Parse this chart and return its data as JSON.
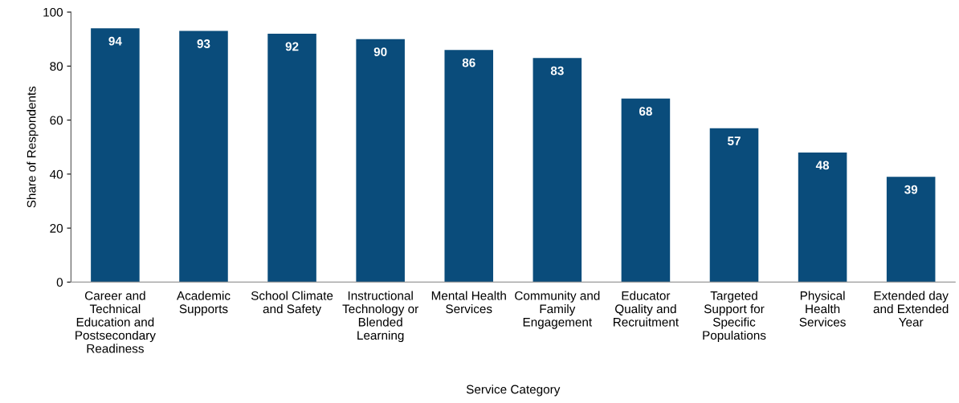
{
  "chart_data": {
    "type": "bar",
    "xlabel": "Service Category",
    "ylabel": "Share of Respondents",
    "categories": [
      "Career and Technical Education and Postsecondary Readiness",
      "Academic Supports",
      "School Climate and Safety",
      "Instructional Technology or Blended Learning",
      "Mental Health Services",
      "Community and Family Engagement",
      "Educator Quality and Recruitment",
      "Targeted Support for Specific Populations",
      "Physical Health Services",
      "Extended day and Extended Year"
    ],
    "values": [
      94,
      93,
      92,
      90,
      86,
      83,
      68,
      57,
      48,
      39
    ],
    "color": "#0a4c7b",
    "ylim": [
      0,
      100
    ],
    "yticks": [
      0,
      20,
      40,
      60,
      80,
      100
    ],
    "grid": false,
    "data_labels": true
  }
}
